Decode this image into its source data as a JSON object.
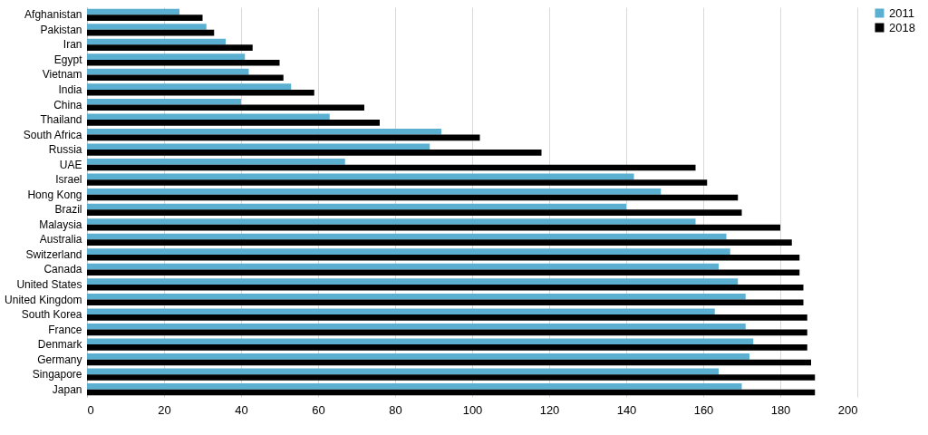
{
  "chart_data": {
    "type": "bar",
    "orientation": "horizontal",
    "categories": [
      "Afghanistan",
      "Pakistan",
      "Iran",
      "Egypt",
      "Vietnam",
      "India",
      "China",
      "Thailand",
      "South Africa",
      "Russia",
      "UAE",
      "Israel",
      "Hong Kong",
      "Brazil",
      "Malaysia",
      "Australia",
      "Switzerland",
      "Canada",
      "United States",
      "United Kingdom",
      "South Korea",
      "France",
      "Denmark",
      "Germany",
      "Singapore",
      "Japan"
    ],
    "series": [
      {
        "name": "2011",
        "color": "#5bafd0",
        "values": [
          24,
          31,
          36,
          41,
          42,
          53,
          40,
          63,
          92,
          89,
          67,
          142,
          149,
          140,
          158,
          166,
          167,
          164,
          169,
          171,
          163,
          171,
          173,
          172,
          164,
          170
        ]
      },
      {
        "name": "2018",
        "color": "#000000",
        "values": [
          30,
          33,
          43,
          50,
          51,
          59,
          72,
          76,
          102,
          118,
          158,
          161,
          169,
          170,
          180,
          183,
          185,
          185,
          186,
          186,
          187,
          187,
          187,
          188,
          189,
          189
        ]
      }
    ],
    "xlim": [
      0,
      200
    ],
    "xticks": [
      0,
      20,
      40,
      60,
      80,
      100,
      120,
      140,
      160,
      180,
      200
    ],
    "grid": "x",
    "legend": "right"
  }
}
